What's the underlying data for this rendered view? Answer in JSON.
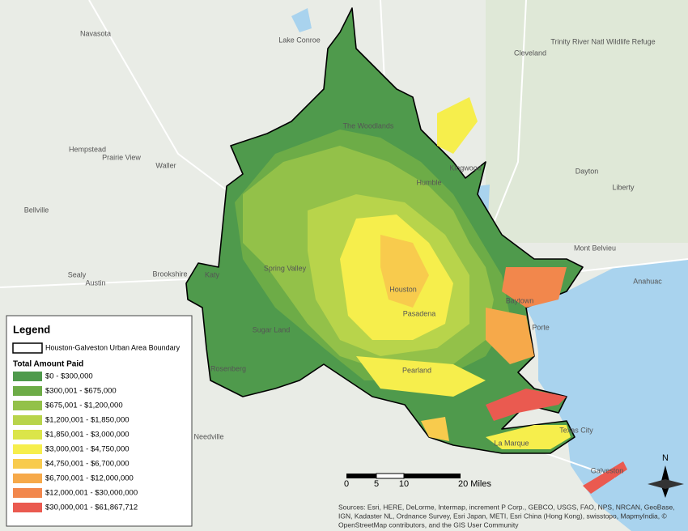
{
  "legend": {
    "title": "Legend",
    "boundary": "Houston-Galveston Urban Area Boundary",
    "subtitle": "Total Amount Paid",
    "classes": [
      {
        "label": "$0 - $300,000",
        "color": "#4f9a4c"
      },
      {
        "label": "$300,001 - $675,000",
        "color": "#6dac47"
      },
      {
        "label": "$675,001 - $1,200,000",
        "color": "#93c149"
      },
      {
        "label": "$1,200,001 - $1,850,000",
        "color": "#b8d44b"
      },
      {
        "label": "$1,850,001 - $3,000,000",
        "color": "#dbe549"
      },
      {
        "label": "$3,000,001 - $4,750,000",
        "color": "#f6ee4c"
      },
      {
        "label": "$4,750,001 - $6,700,000",
        "color": "#f8cb4d"
      },
      {
        "label": "$6,700,001 - $12,000,000",
        "color": "#f6a94a"
      },
      {
        "label": "$12,000,001 - $30,000,000",
        "color": "#f2874c"
      },
      {
        "label": "$30,000,001 - $61,867,712",
        "color": "#ea5a50"
      }
    ]
  },
  "places": [
    "Navasota",
    "Hempstead",
    "Prairie View",
    "Waller",
    "Bellville",
    "Sealy",
    "Austin",
    "Brookshire",
    "Katy",
    "Cleveland",
    "Dayton",
    "Liberty",
    "Mont Belvieu",
    "Anahuac",
    "Houston",
    "Pasadena",
    "Kingwood",
    "Spring Valley",
    "Sugar Land",
    "Rosenberg",
    "Needville",
    "Pearland",
    "La Marque",
    "Texas City",
    "Galveston",
    "The Woodlands",
    "Lake Conroe",
    "Trinity River Natl Wildlife Refuge",
    "Baytown",
    "Humble",
    "Porte"
  ],
  "scale_bar": [
    "0",
    "5",
    "10",
    "20 Miles"
  ],
  "north": "N",
  "attribution": [
    "Sources: Esri, HERE, DeLorme, Intermap, increment P Corp., GEBCO, USGS, FAO, NPS, NRCAN, GeoBase,",
    "IGN, Kadaster NL, Ordnance Survey, Esri Japan, METI, Esri China (Hong Kong), swisstopo, MapmyIndia, ©",
    "OpenStreetMap contributors, and the GIS User Community"
  ]
}
